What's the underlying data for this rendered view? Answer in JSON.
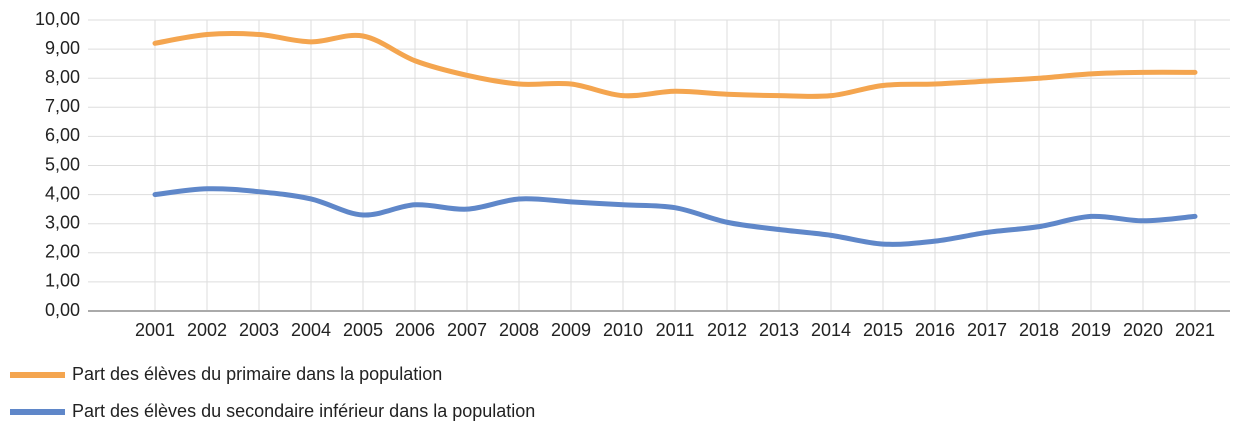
{
  "chart_data": {
    "type": "line",
    "categories": [
      "2001",
      "2002",
      "2003",
      "2004",
      "2005",
      "2006",
      "2007",
      "2008",
      "2009",
      "2010",
      "2011",
      "2012",
      "2013",
      "2014",
      "2015",
      "2016",
      "2017",
      "2018",
      "2019",
      "2020",
      "2021"
    ],
    "series": [
      {
        "name": "Part des élèves du primaire dans la population",
        "color": "#f4a54f",
        "values": [
          9.2,
          9.5,
          9.5,
          9.25,
          9.45,
          8.6,
          8.1,
          7.8,
          7.8,
          7.4,
          7.55,
          7.45,
          7.4,
          7.4,
          7.75,
          7.8,
          7.9,
          8.0,
          8.15,
          8.2,
          8.2
        ]
      },
      {
        "name": "Part des élèves du secondaire inférieur dans la population",
        "color": "#5f87c9",
        "values": [
          4.0,
          4.2,
          4.1,
          3.85,
          3.3,
          3.65,
          3.5,
          3.85,
          3.75,
          3.65,
          3.55,
          3.05,
          2.8,
          2.6,
          2.3,
          2.4,
          2.7,
          2.9,
          3.25,
          3.1,
          3.25
        ]
      }
    ],
    "ylim": [
      0,
      10
    ],
    "yticks": [
      {
        "value": 0,
        "label": "0,00"
      },
      {
        "value": 1,
        "label": "1,00"
      },
      {
        "value": 2,
        "label": "2,00"
      },
      {
        "value": 3,
        "label": "3,00"
      },
      {
        "value": 4,
        "label": "4,00"
      },
      {
        "value": 5,
        "label": "5,00"
      },
      {
        "value": 6,
        "label": "6,00"
      },
      {
        "value": 7,
        "label": "7,00"
      },
      {
        "value": 8,
        "label": "8,00"
      },
      {
        "value": 9,
        "label": "9,00"
      },
      {
        "value": 10,
        "label": "10,00"
      }
    ],
    "grid": true,
    "legend": "bottom"
  }
}
